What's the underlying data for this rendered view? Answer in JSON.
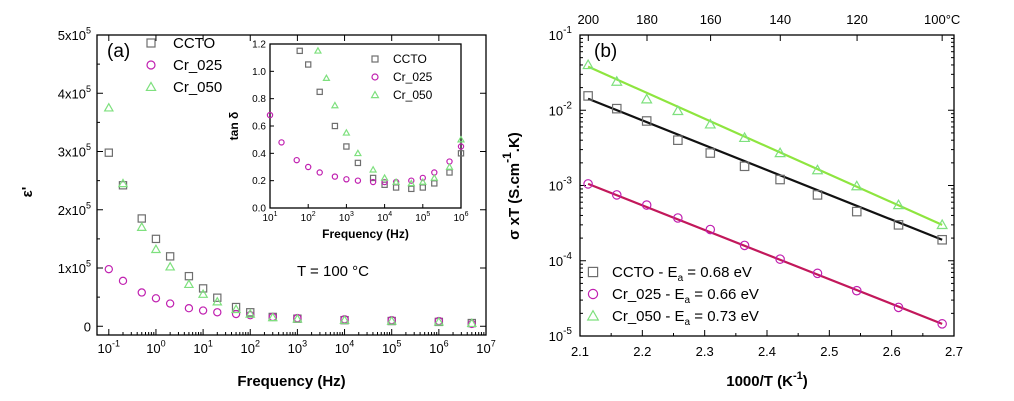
{
  "chart_data": [
    {
      "type": "scatter",
      "panel_label": "(a)",
      "xlabel": "Frequency (Hz)",
      "ylabel": "ε'",
      "x_scale": "log",
      "xlim": [
        0.0562,
        10000000
      ],
      "ylim": [
        -15000,
        500000
      ],
      "x_ticks": [
        0.1,
        1,
        10,
        100,
        1000,
        10000,
        100000,
        1000000,
        10000000
      ],
      "x_tick_labels": [
        "10",
        "10",
        "10",
        "10",
        "10",
        "10",
        "10",
        "10",
        "10"
      ],
      "x_tick_exponents": [
        "-1",
        "0",
        "1",
        "2",
        "3",
        "4",
        "5",
        "6",
        "7"
      ],
      "y_ticks": [
        0,
        100000,
        200000,
        300000,
        400000,
        500000
      ],
      "y_tick_labels": [
        "0",
        "1x10",
        "2x10",
        "3x10",
        "4x10",
        "5x10"
      ],
      "y_tick_exponents": [
        "",
        "5",
        "5",
        "5",
        "5",
        "5"
      ],
      "annotation": "T = 100 °C",
      "legend": "top-left",
      "series": [
        {
          "name": "CCTO",
          "marker": "square",
          "color": "#6e6e6e",
          "x": [
            0.1,
            0.2,
            0.5,
            1,
            2,
            5,
            10,
            20,
            50,
            100,
            300,
            1000,
            10000,
            100000,
            1000000,
            5000000
          ],
          "y": [
            298000,
            242000,
            185000,
            150000,
            120000,
            86000,
            65000,
            49000,
            33000,
            24000,
            16000,
            13000,
            10500,
            9000,
            7500,
            5500
          ]
        },
        {
          "name": "Cr_025",
          "marker": "circle",
          "color": "#c020b0",
          "x": [
            0.1,
            0.2,
            0.5,
            1,
            2,
            5,
            10,
            20,
            50,
            100,
            300,
            1000,
            10000,
            100000,
            1000000,
            5000000
          ],
          "y": [
            98000,
            78000,
            58000,
            48000,
            39000,
            31000,
            27000,
            24000,
            21000,
            19000,
            16000,
            14000,
            12000,
            10500,
            9000,
            4000
          ]
        },
        {
          "name": "Cr_050",
          "marker": "triangle",
          "color": "#7ee07e",
          "x": [
            0.1,
            0.2,
            0.5,
            1,
            2,
            5,
            10,
            20,
            50,
            100,
            300,
            1000,
            10000,
            100000,
            1000000,
            5000000
          ],
          "y": [
            375000,
            245000,
            170000,
            132000,
            102000,
            72000,
            55000,
            42000,
            29000,
            21000,
            15000,
            12500,
            10500,
            9000,
            7500,
            5000
          ]
        }
      ]
    },
    {
      "type": "scatter",
      "inset": true,
      "xlabel": "Frequency (Hz)",
      "ylabel": "tan δ",
      "x_scale": "log",
      "xlim": [
        10,
        1000000
      ],
      "ylim": [
        0,
        1.2
      ],
      "x_ticks": [
        10,
        100,
        1000,
        10000,
        100000,
        1000000
      ],
      "x_tick_labels": [
        "10",
        "10",
        "10",
        "10",
        "10",
        "10"
      ],
      "x_tick_exponents": [
        "1",
        "2",
        "3",
        "4",
        "5",
        "6"
      ],
      "y_ticks": [
        0,
        0.2,
        0.4,
        0.6,
        0.8,
        1.0,
        1.2
      ],
      "y_tick_labels": [
        "0.0",
        "0.2",
        "0.4",
        "0.6",
        "0.8",
        "1.0",
        "1.2"
      ],
      "legend": "top-right",
      "series": [
        {
          "name": "CCTO",
          "marker": "square",
          "color": "#6e6e6e",
          "x": [
            60,
            100,
            200,
            500,
            1000,
            2000,
            5000,
            10000,
            20000,
            50000,
            100000,
            200000,
            500000,
            1000000
          ],
          "y": [
            1.15,
            1.05,
            0.85,
            0.6,
            0.45,
            0.33,
            0.22,
            0.17,
            0.15,
            0.14,
            0.15,
            0.18,
            0.26,
            0.4
          ]
        },
        {
          "name": "Cr_025",
          "marker": "circle",
          "color": "#c020b0",
          "x": [
            10,
            20,
            50,
            100,
            200,
            500,
            1000,
            2000,
            5000,
            10000,
            20000,
            50000,
            100000,
            200000,
            500000,
            1000000
          ],
          "y": [
            0.68,
            0.48,
            0.35,
            0.3,
            0.26,
            0.23,
            0.21,
            0.2,
            0.19,
            0.19,
            0.19,
            0.2,
            0.22,
            0.26,
            0.34,
            0.45
          ]
        },
        {
          "name": "Cr_050",
          "marker": "triangle",
          "color": "#7ee07e",
          "x": [
            180,
            300,
            500,
            1000,
            2000,
            5000,
            10000,
            20000,
            50000,
            100000,
            200000,
            500000,
            1000000
          ],
          "y": [
            1.15,
            0.95,
            0.75,
            0.55,
            0.4,
            0.28,
            0.22,
            0.19,
            0.18,
            0.19,
            0.22,
            0.3,
            0.5
          ]
        }
      ]
    },
    {
      "type": "scatter",
      "panel_label": "(b)",
      "xlabel": "1000/T (K",
      "xlabel_exponent": "-1",
      "xlabel_suffix": ")",
      "ylabel": "σ xT (S.cm",
      "ylabel_exponent": "-1",
      "ylabel_suffix": ".K)",
      "y_scale": "log",
      "xlim": [
        2.1,
        2.7
      ],
      "ylim": [
        1e-05,
        0.1
      ],
      "x_ticks": [
        2.1,
        2.2,
        2.3,
        2.4,
        2.5,
        2.6,
        2.7
      ],
      "x_tick_labels": [
        "2.1",
        "2.2",
        "2.3",
        "2.4",
        "2.5",
        "2.6",
        "2.7"
      ],
      "y_ticks": [
        1e-05,
        0.0001,
        0.001,
        0.01,
        0.1
      ],
      "y_tick_labels": [
        "10",
        "10",
        "10",
        "10",
        "10"
      ],
      "y_tick_exponents": [
        "-5",
        "-4",
        "-3",
        "-2",
        "-1"
      ],
      "top_axis_ticks": [
        2.1133,
        2.2075,
        2.3095,
        2.4213,
        2.5445,
        2.681
      ],
      "top_axis_labels": [
        "200",
        "180",
        "160",
        "140",
        "120",
        "100°C"
      ],
      "legend": "bottom-left",
      "series": [
        {
          "name": "CCTO",
          "legend_suffix": "- E",
          "legend_subscript": "a",
          "legend_value": "= 0.68 eV",
          "marker": "square",
          "color": "#6e6e6e",
          "line_color": "#111111",
          "x": [
            2.113,
            2.159,
            2.207,
            2.257,
            2.309,
            2.364,
            2.421,
            2.481,
            2.544,
            2.611,
            2.681
          ],
          "y": [
            0.0155,
            0.0105,
            0.0072,
            0.004,
            0.0027,
            0.0018,
            0.0012,
            0.00075,
            0.00045,
            0.0003,
            0.00019
          ],
          "fit": {
            "x": [
              2.113,
              2.681
            ],
            "y": [
              0.0142,
              0.00019
            ]
          }
        },
        {
          "name": "Cr_025",
          "legend_suffix": "- E",
          "legend_subscript": "a",
          "legend_value": "= 0.66 eV",
          "marker": "circle",
          "color": "#c020b0",
          "line_color": "#c2185b",
          "x": [
            2.113,
            2.159,
            2.207,
            2.257,
            2.309,
            2.364,
            2.421,
            2.481,
            2.544,
            2.611,
            2.681
          ],
          "y": [
            0.00105,
            0.00075,
            0.00055,
            0.00037,
            0.00026,
            0.00016,
            0.000105,
            6.8e-05,
            4e-05,
            2.4e-05,
            1.45e-05
          ],
          "fit": {
            "x": [
              2.113,
              2.681
            ],
            "y": [
              0.00105,
              1.45e-05
            ]
          }
        },
        {
          "name": "Cr_050",
          "legend_suffix": "- E",
          "legend_subscript": "a",
          "legend_value": "= 0.73 eV",
          "marker": "triangle",
          "color": "#7ee07e",
          "line_color": "#8ee53f",
          "x": [
            2.113,
            2.159,
            2.207,
            2.257,
            2.309,
            2.364,
            2.421,
            2.481,
            2.544,
            2.611,
            2.681
          ],
          "y": [
            0.04,
            0.024,
            0.014,
            0.0098,
            0.0065,
            0.0043,
            0.0027,
            0.0016,
            0.00098,
            0.00055,
            0.0003
          ],
          "fit": {
            "x": [
              2.113,
              2.681
            ],
            "y": [
              0.038,
              0.0003
            ]
          }
        }
      ]
    }
  ]
}
